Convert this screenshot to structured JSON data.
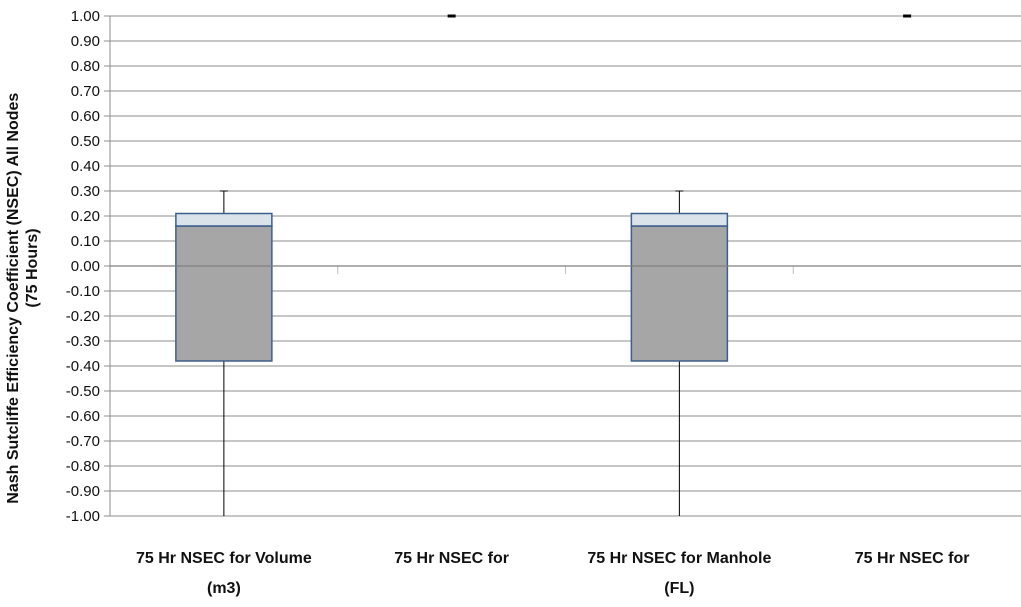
{
  "chart_data": {
    "type": "box",
    "ylabel_line1": "Nash Sutcliffe Efficiency Coefficient (NSEC) All Nodes",
    "ylabel_line2": "(75 Hours)",
    "ylim": [
      -1.0,
      1.0
    ],
    "ytick_step": 0.1,
    "grid": true,
    "categories": [
      {
        "label_lines": [
          "75 Hr NSEC for Volume",
          "(m3)"
        ]
      },
      {
        "label_lines": [
          "75 Hr NSEC for"
        ]
      },
      {
        "label_lines": [
          "75 Hr NSEC for Manhole",
          "(FL)"
        ]
      },
      {
        "label_lines": [
          "75 Hr NSEC for"
        ]
      }
    ],
    "boxes": [
      {
        "category_index": 0,
        "whisker_low": -1.0,
        "q1": -0.38,
        "median": 0.16,
        "q3": 0.21,
        "whisker_high": 0.3
      },
      {
        "category_index": 1,
        "max_marker": 1.0
      },
      {
        "category_index": 2,
        "whisker_low": -1.0,
        "q1": -0.38,
        "median": 0.16,
        "q3": 0.21,
        "whisker_high": 0.3
      },
      {
        "category_index": 3,
        "max_marker": 1.0
      }
    ],
    "colors": {
      "lower_box": "#a6a6a6",
      "upper_box": "#dbe3ea",
      "box_outline": "#3d5f8c",
      "grid": "#8c8c8c"
    }
  }
}
